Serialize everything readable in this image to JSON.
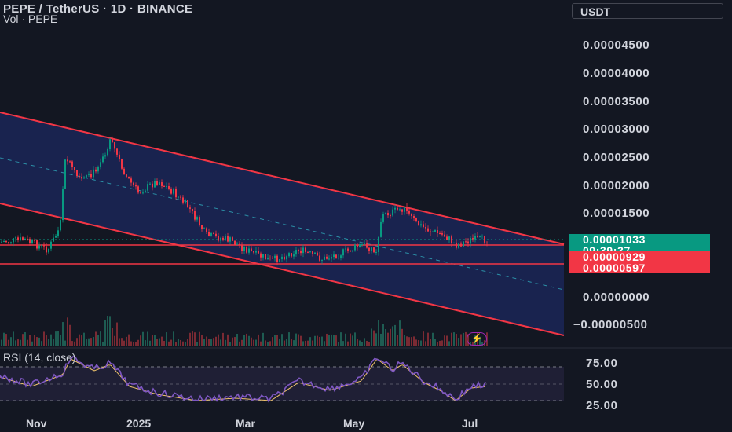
{
  "header": {
    "symbol_line": "PEPE / TetherUS · 1D · BINANCE",
    "volume_line": "Vol · PEPE"
  },
  "currency_button": {
    "label": "USDT"
  },
  "price_axis": {
    "ticks": [
      "0.00004500",
      "0.00004000",
      "0.00003500",
      "0.00003000",
      "0.00002500",
      "0.00002000",
      "0.00001500",
      "0.00000000",
      "−0.00000500"
    ]
  },
  "price_tags": {
    "last_price": "0.00001033",
    "countdown": "09:39:37",
    "level_upper": "0.00000929",
    "level_lower": "0.00000597",
    "colors": {
      "last": "#089981",
      "level": "#f23645"
    }
  },
  "rsi": {
    "label": "RSI (14, close)",
    "ticks": [
      "75.00",
      "50.00",
      "25.00"
    ]
  },
  "time_axis": {
    "ticks": [
      "Nov",
      "2025",
      "Mar",
      "May",
      "Jul"
    ]
  },
  "icons": {
    "alert_bolt": "lightning-icon"
  },
  "colors": {
    "background": "#131722",
    "channel_fill": "#1a2451",
    "channel_line": "#f23645",
    "up": "#089981",
    "down": "#f23645",
    "rsi_line": "#7e57c2",
    "rsi_ma": "#f0c36b"
  }
}
